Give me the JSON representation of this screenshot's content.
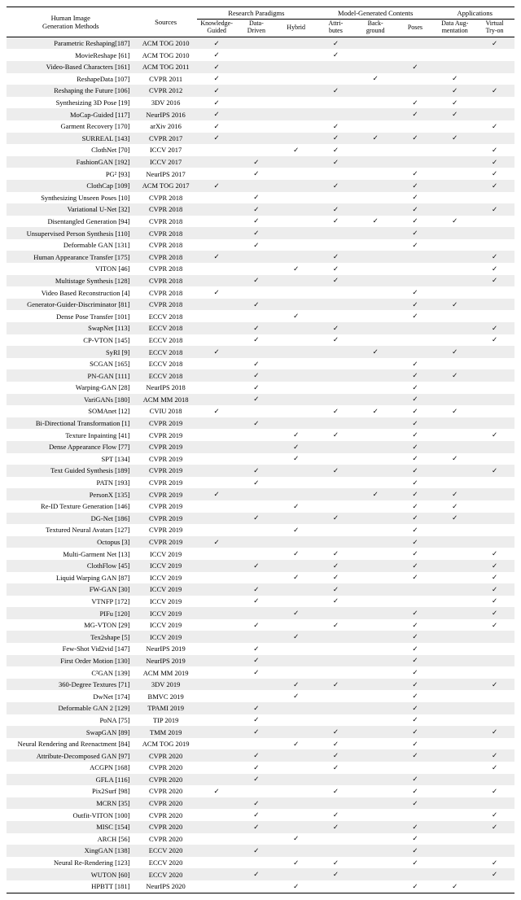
{
  "header": {
    "title_line1": "Human Image",
    "title_line2": "Generation Methods",
    "sources": "Sources",
    "groups": {
      "research": "Research Paradigms",
      "contents": "Model-Generated Contents",
      "apps": "Applications"
    },
    "cols": {
      "kg": "Knowledge-\nGuided",
      "dd": "Data-\nDriven",
      "hy": "Hybrid",
      "attr": "Attri-\nbutes",
      "bg": "Back-\nground",
      "pose": "Poses",
      "da": "Data Aug-\nmentation",
      "vt": "Virtual\nTry-on"
    }
  },
  "colors": {
    "zebra": "#ededed",
    "rule": "#000000"
  },
  "check": "✓",
  "rows": [
    {
      "m": "Parametric Reshaping[187]",
      "s": "ACM TOG 2010",
      "kg": 1,
      "dd": 0,
      "hy": 0,
      "attr": 1,
      "bg": 0,
      "pose": 0,
      "da": 0,
      "vt": 1
    },
    {
      "m": "MovieReshape [61]",
      "s": "ACM TOG 2010",
      "kg": 1,
      "dd": 0,
      "hy": 0,
      "attr": 1,
      "bg": 0,
      "pose": 0,
      "da": 0,
      "vt": 0
    },
    {
      "m": "Video-Based Characters [161]",
      "s": "ACM TOG 2011",
      "kg": 1,
      "dd": 0,
      "hy": 0,
      "attr": 0,
      "bg": 0,
      "pose": 1,
      "da": 0,
      "vt": 0
    },
    {
      "m": "ReshapeData [107]",
      "s": "CVPR 2011",
      "kg": 1,
      "dd": 0,
      "hy": 0,
      "attr": 0,
      "bg": 1,
      "pose": 0,
      "da": 1,
      "vt": 0
    },
    {
      "m": "Reshaping the Future [106]",
      "s": "CVPR 2012",
      "kg": 1,
      "dd": 0,
      "hy": 0,
      "attr": 1,
      "bg": 0,
      "pose": 0,
      "da": 1,
      "vt": 1
    },
    {
      "m": "Synthesizing 3D Pose [19]",
      "s": "3DV 2016",
      "kg": 1,
      "dd": 0,
      "hy": 0,
      "attr": 0,
      "bg": 0,
      "pose": 1,
      "da": 1,
      "vt": 0
    },
    {
      "m": "MoCap-Guided [117]",
      "s": "NeurIPS 2016",
      "kg": 1,
      "dd": 0,
      "hy": 0,
      "attr": 0,
      "bg": 0,
      "pose": 1,
      "da": 1,
      "vt": 0
    },
    {
      "m": "Garment Recovery [170]",
      "s": "arXiv 2016",
      "kg": 1,
      "dd": 0,
      "hy": 0,
      "attr": 1,
      "bg": 0,
      "pose": 0,
      "da": 0,
      "vt": 1
    },
    {
      "m": "SURREAL [143]",
      "s": "CVPR 2017",
      "kg": 1,
      "dd": 0,
      "hy": 0,
      "attr": 1,
      "bg": 1,
      "pose": 1,
      "da": 1,
      "vt": 0
    },
    {
      "m": "ClothNet [70]",
      "s": "ICCV 2017",
      "kg": 0,
      "dd": 0,
      "hy": 1,
      "attr": 1,
      "bg": 0,
      "pose": 0,
      "da": 0,
      "vt": 1
    },
    {
      "m": "FashionGAN [192]",
      "s": "ICCV 2017",
      "kg": 0,
      "dd": 1,
      "hy": 0,
      "attr": 1,
      "bg": 0,
      "pose": 0,
      "da": 0,
      "vt": 1
    },
    {
      "m": "PG² [93]",
      "s": "NeurIPS 2017",
      "kg": 0,
      "dd": 1,
      "hy": 0,
      "attr": 0,
      "bg": 0,
      "pose": 1,
      "da": 0,
      "vt": 1
    },
    {
      "m": "ClothCap [109]",
      "s": "ACM TOG 2017",
      "kg": 1,
      "dd": 0,
      "hy": 0,
      "attr": 1,
      "bg": 0,
      "pose": 1,
      "da": 0,
      "vt": 1
    },
    {
      "m": "Synthesizing Unseen Poses [10]",
      "s": "CVPR 2018",
      "kg": 0,
      "dd": 1,
      "hy": 0,
      "attr": 0,
      "bg": 0,
      "pose": 1,
      "da": 0,
      "vt": 0
    },
    {
      "m": "Variational U-Net [32]",
      "s": "CVPR 2018",
      "kg": 0,
      "dd": 1,
      "hy": 0,
      "attr": 1,
      "bg": 0,
      "pose": 1,
      "da": 0,
      "vt": 1
    },
    {
      "m": "Disentangled Generation [94]",
      "s": "CVPR 2018",
      "kg": 0,
      "dd": 1,
      "hy": 0,
      "attr": 1,
      "bg": 1,
      "pose": 1,
      "da": 1,
      "vt": 0
    },
    {
      "m": "Unsupervised Person Synthesis [110]",
      "s": "CVPR 2018",
      "kg": 0,
      "dd": 1,
      "hy": 0,
      "attr": 0,
      "bg": 0,
      "pose": 1,
      "da": 0,
      "vt": 0
    },
    {
      "m": "Deformable GAN [131]",
      "s": "CVPR 2018",
      "kg": 0,
      "dd": 1,
      "hy": 0,
      "attr": 0,
      "bg": 0,
      "pose": 1,
      "da": 0,
      "vt": 0
    },
    {
      "m": "Human Appearance Transfer [175]",
      "s": "CVPR 2018",
      "kg": 1,
      "dd": 0,
      "hy": 0,
      "attr": 1,
      "bg": 0,
      "pose": 0,
      "da": 0,
      "vt": 1
    },
    {
      "m": "VITON [46]",
      "s": "CVPR 2018",
      "kg": 0,
      "dd": 0,
      "hy": 1,
      "attr": 1,
      "bg": 0,
      "pose": 0,
      "da": 0,
      "vt": 1
    },
    {
      "m": "Multistage Synthesis [128]",
      "s": "CVPR 2018",
      "kg": 0,
      "dd": 1,
      "hy": 0,
      "attr": 1,
      "bg": 0,
      "pose": 0,
      "da": 0,
      "vt": 1
    },
    {
      "m": "Video Based Reconstruction [4]",
      "s": "CVPR 2018",
      "kg": 1,
      "dd": 0,
      "hy": 0,
      "attr": 0,
      "bg": 0,
      "pose": 1,
      "da": 0,
      "vt": 0
    },
    {
      "m": "Generator-Guider-Discriminator [81]",
      "s": "CVPR 2018",
      "kg": 0,
      "dd": 1,
      "hy": 0,
      "attr": 0,
      "bg": 0,
      "pose": 1,
      "da": 1,
      "vt": 0
    },
    {
      "m": "Dense Pose Transfer [101]",
      "s": "ECCV 2018",
      "kg": 0,
      "dd": 0,
      "hy": 1,
      "attr": 0,
      "bg": 0,
      "pose": 1,
      "da": 0,
      "vt": 0
    },
    {
      "m": "SwapNet [113]",
      "s": "ECCV 2018",
      "kg": 0,
      "dd": 1,
      "hy": 0,
      "attr": 1,
      "bg": 0,
      "pose": 0,
      "da": 0,
      "vt": 1
    },
    {
      "m": "CP-VTON [145]",
      "s": "ECCV 2018",
      "kg": 0,
      "dd": 1,
      "hy": 0,
      "attr": 1,
      "bg": 0,
      "pose": 0,
      "da": 0,
      "vt": 1
    },
    {
      "m": "SyRI [9]",
      "s": "ECCV 2018",
      "kg": 1,
      "dd": 0,
      "hy": 0,
      "attr": 0,
      "bg": 1,
      "pose": 0,
      "da": 1,
      "vt": 0
    },
    {
      "m": "SCGAN [165]",
      "s": "ECCV 2018",
      "kg": 0,
      "dd": 1,
      "hy": 0,
      "attr": 0,
      "bg": 0,
      "pose": 1,
      "da": 0,
      "vt": 0
    },
    {
      "m": "PN-GAN [111]",
      "s": "ECCV 2018",
      "kg": 0,
      "dd": 1,
      "hy": 0,
      "attr": 0,
      "bg": 0,
      "pose": 1,
      "da": 1,
      "vt": 0
    },
    {
      "m": "Warping-GAN [28]",
      "s": "NeurIPS 2018",
      "kg": 0,
      "dd": 1,
      "hy": 0,
      "attr": 0,
      "bg": 0,
      "pose": 1,
      "da": 0,
      "vt": 0
    },
    {
      "m": "VariGANs [180]",
      "s": "ACM MM 2018",
      "kg": 0,
      "dd": 1,
      "hy": 0,
      "attr": 0,
      "bg": 0,
      "pose": 1,
      "da": 0,
      "vt": 0
    },
    {
      "m": "SOMAnet [12]",
      "s": "CVIU 2018",
      "kg": 1,
      "dd": 0,
      "hy": 0,
      "attr": 1,
      "bg": 1,
      "pose": 1,
      "da": 1,
      "vt": 0
    },
    {
      "m": "Bi-Directional Transformation [1]",
      "s": "CVPR 2019",
      "kg": 0,
      "dd": 1,
      "hy": 0,
      "attr": 0,
      "bg": 0,
      "pose": 1,
      "da": 0,
      "vt": 0
    },
    {
      "m": "Texture Inpainting [41]",
      "s": "CVPR 2019",
      "kg": 0,
      "dd": 0,
      "hy": 1,
      "attr": 1,
      "bg": 0,
      "pose": 1,
      "da": 0,
      "vt": 1
    },
    {
      "m": "Dense Appearance Flow [77]",
      "s": "CVPR 2019",
      "kg": 0,
      "dd": 0,
      "hy": 1,
      "attr": 0,
      "bg": 0,
      "pose": 1,
      "da": 0,
      "vt": 0
    },
    {
      "m": "SPT [134]",
      "s": "CVPR 2019",
      "kg": 0,
      "dd": 0,
      "hy": 1,
      "attr": 0,
      "bg": 0,
      "pose": 1,
      "da": 1,
      "vt": 0
    },
    {
      "m": "Text Guided Synthesis [189]",
      "s": "CVPR 2019",
      "kg": 0,
      "dd": 1,
      "hy": 0,
      "attr": 1,
      "bg": 0,
      "pose": 1,
      "da": 0,
      "vt": 1
    },
    {
      "m": "PATN [193]",
      "s": "CVPR 2019",
      "kg": 0,
      "dd": 1,
      "hy": 0,
      "attr": 0,
      "bg": 0,
      "pose": 1,
      "da": 0,
      "vt": 0
    },
    {
      "m": "PersonX [135]",
      "s": "CVPR 2019",
      "kg": 1,
      "dd": 0,
      "hy": 0,
      "attr": 0,
      "bg": 1,
      "pose": 1,
      "da": 1,
      "vt": 0
    },
    {
      "m": "Re-ID Texture Generation [146]",
      "s": "CVPR 2019",
      "kg": 0,
      "dd": 0,
      "hy": 1,
      "attr": 0,
      "bg": 0,
      "pose": 1,
      "da": 1,
      "vt": 0
    },
    {
      "m": "DG-Net [186]",
      "s": "CVPR 2019",
      "kg": 0,
      "dd": 1,
      "hy": 0,
      "attr": 1,
      "bg": 0,
      "pose": 1,
      "da": 1,
      "vt": 0
    },
    {
      "m": "Textured Neural Avatars [127]",
      "s": "CVPR 2019",
      "kg": 0,
      "dd": 0,
      "hy": 1,
      "attr": 0,
      "bg": 0,
      "pose": 1,
      "da": 0,
      "vt": 0
    },
    {
      "m": "Octopus [3]",
      "s": "CVPR 2019",
      "kg": 1,
      "dd": 0,
      "hy": 0,
      "attr": 0,
      "bg": 0,
      "pose": 1,
      "da": 0,
      "vt": 0
    },
    {
      "m": "Multi-Garment Net [13]",
      "s": "ICCV 2019",
      "kg": 0,
      "dd": 0,
      "hy": 1,
      "attr": 1,
      "bg": 0,
      "pose": 1,
      "da": 0,
      "vt": 1
    },
    {
      "m": "ClothFlow [45]",
      "s": "ICCV 2019",
      "kg": 0,
      "dd": 1,
      "hy": 0,
      "attr": 1,
      "bg": 0,
      "pose": 1,
      "da": 0,
      "vt": 1
    },
    {
      "m": "Liquid Warping GAN [87]",
      "s": "ICCV 2019",
      "kg": 0,
      "dd": 0,
      "hy": 1,
      "attr": 1,
      "bg": 0,
      "pose": 1,
      "da": 0,
      "vt": 1
    },
    {
      "m": "FW-GAN [30]",
      "s": "ICCV 2019",
      "kg": 0,
      "dd": 1,
      "hy": 0,
      "attr": 1,
      "bg": 0,
      "pose": 0,
      "da": 0,
      "vt": 1
    },
    {
      "m": "VTNFP [172]",
      "s": "ICCV 2019",
      "kg": 0,
      "dd": 1,
      "hy": 0,
      "attr": 1,
      "bg": 0,
      "pose": 0,
      "da": 0,
      "vt": 1
    },
    {
      "m": "PIFu [120]",
      "s": "ICCV 2019",
      "kg": 0,
      "dd": 0,
      "hy": 1,
      "attr": 0,
      "bg": 0,
      "pose": 1,
      "da": 0,
      "vt": 1
    },
    {
      "m": "MG-VTON [29]",
      "s": "ICCV 2019",
      "kg": 0,
      "dd": 1,
      "hy": 0,
      "attr": 1,
      "bg": 0,
      "pose": 1,
      "da": 0,
      "vt": 1
    },
    {
      "m": "Tex2shape [5]",
      "s": "ICCV 2019",
      "kg": 0,
      "dd": 0,
      "hy": 1,
      "attr": 0,
      "bg": 0,
      "pose": 1,
      "da": 0,
      "vt": 0
    },
    {
      "m": "Few-Shot Vid2vid [147]",
      "s": "NeurIPS 2019",
      "kg": 0,
      "dd": 1,
      "hy": 0,
      "attr": 0,
      "bg": 0,
      "pose": 1,
      "da": 0,
      "vt": 0
    },
    {
      "m": "First Order Motion [130]",
      "s": "NeurIPS 2019",
      "kg": 0,
      "dd": 1,
      "hy": 0,
      "attr": 0,
      "bg": 0,
      "pose": 1,
      "da": 0,
      "vt": 0
    },
    {
      "m": "C²GAN [139]",
      "s": "ACM MM 2019",
      "kg": 0,
      "dd": 1,
      "hy": 0,
      "attr": 0,
      "bg": 0,
      "pose": 1,
      "da": 0,
      "vt": 0
    },
    {
      "m": "360-Degree Textures [71]",
      "s": "3DV 2019",
      "kg": 0,
      "dd": 0,
      "hy": 1,
      "attr": 1,
      "bg": 0,
      "pose": 1,
      "da": 0,
      "vt": 1
    },
    {
      "m": "DwNet [174]",
      "s": "BMVC 2019",
      "kg": 0,
      "dd": 0,
      "hy": 1,
      "attr": 0,
      "bg": 0,
      "pose": 1,
      "da": 0,
      "vt": 0
    },
    {
      "m": "Deformable GAN 2 [129]",
      "s": "TPAMI 2019",
      "kg": 0,
      "dd": 1,
      "hy": 0,
      "attr": 0,
      "bg": 0,
      "pose": 1,
      "da": 0,
      "vt": 0
    },
    {
      "m": "PoNA [75]",
      "s": "TIP 2019",
      "kg": 0,
      "dd": 1,
      "hy": 0,
      "attr": 0,
      "bg": 0,
      "pose": 1,
      "da": 0,
      "vt": 0
    },
    {
      "m": "SwapGAN [89]",
      "s": "TMM 2019",
      "kg": 0,
      "dd": 1,
      "hy": 0,
      "attr": 1,
      "bg": 0,
      "pose": 1,
      "da": 0,
      "vt": 1
    },
    {
      "m": "Neural Rendering and Reenactment [84]",
      "s": "ACM TOG 2019",
      "kg": 0,
      "dd": 0,
      "hy": 1,
      "attr": 1,
      "bg": 0,
      "pose": 1,
      "da": 0,
      "vt": 0
    },
    {
      "m": "Attribute-Decomposed GAN [97]",
      "s": "CVPR 2020",
      "kg": 0,
      "dd": 1,
      "hy": 0,
      "attr": 1,
      "bg": 0,
      "pose": 1,
      "da": 0,
      "vt": 1
    },
    {
      "m": "ACGPN [168]",
      "s": "CVPR 2020",
      "kg": 0,
      "dd": 1,
      "hy": 0,
      "attr": 1,
      "bg": 0,
      "pose": 0,
      "da": 0,
      "vt": 1
    },
    {
      "m": "GFLA [116]",
      "s": "CVPR 2020",
      "kg": 0,
      "dd": 1,
      "hy": 0,
      "attr": 0,
      "bg": 0,
      "pose": 1,
      "da": 0,
      "vt": 0
    },
    {
      "m": "Pix2Surf [98]",
      "s": "CVPR 2020",
      "kg": 1,
      "dd": 0,
      "hy": 0,
      "attr": 1,
      "bg": 0,
      "pose": 1,
      "da": 0,
      "vt": 1
    },
    {
      "m": "MCRN [35]",
      "s": "CVPR 2020",
      "kg": 0,
      "dd": 1,
      "hy": 0,
      "attr": 0,
      "bg": 0,
      "pose": 1,
      "da": 0,
      "vt": 0
    },
    {
      "m": "Outfit-VITON [100]",
      "s": "CVPR 2020",
      "kg": 0,
      "dd": 1,
      "hy": 0,
      "attr": 1,
      "bg": 0,
      "pose": 0,
      "da": 0,
      "vt": 1
    },
    {
      "m": "MISC [154]",
      "s": "CVPR 2020",
      "kg": 0,
      "dd": 1,
      "hy": 0,
      "attr": 1,
      "bg": 0,
      "pose": 1,
      "da": 0,
      "vt": 1
    },
    {
      "m": "ARCH [56]",
      "s": "CVPR 2020",
      "kg": 0,
      "dd": 0,
      "hy": 1,
      "attr": 0,
      "bg": 0,
      "pose": 1,
      "da": 0,
      "vt": 0
    },
    {
      "m": "XingGAN [138]",
      "s": "ECCV 2020",
      "kg": 0,
      "dd": 1,
      "hy": 0,
      "attr": 0,
      "bg": 0,
      "pose": 1,
      "da": 0,
      "vt": 0
    },
    {
      "m": "Neural Re-Rendering [123]",
      "s": "ECCV 2020",
      "kg": 0,
      "dd": 0,
      "hy": 1,
      "attr": 1,
      "bg": 0,
      "pose": 1,
      "da": 0,
      "vt": 1
    },
    {
      "m": "WUTON [60]",
      "s": "ECCV 2020",
      "kg": 0,
      "dd": 1,
      "hy": 0,
      "attr": 1,
      "bg": 0,
      "pose": 0,
      "da": 0,
      "vt": 1
    },
    {
      "m": "HPBTT [181]",
      "s": "NeurIPS 2020",
      "kg": 0,
      "dd": 0,
      "hy": 1,
      "attr": 0,
      "bg": 0,
      "pose": 1,
      "da": 1,
      "vt": 0
    }
  ]
}
